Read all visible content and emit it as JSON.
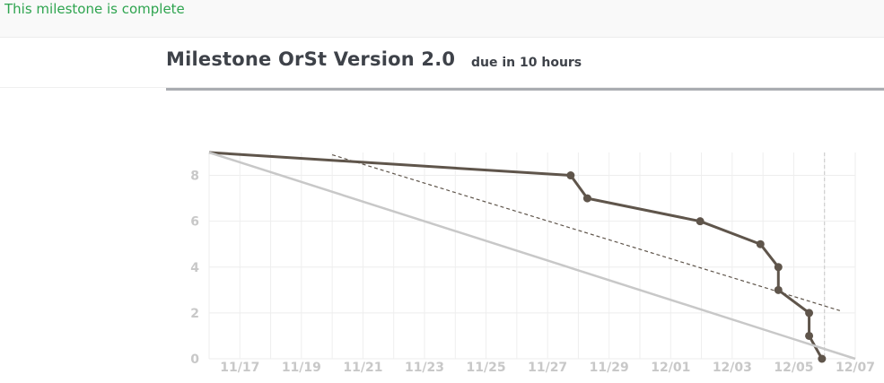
{
  "banner": {
    "text": "This milestone is complete"
  },
  "milestone": {
    "title": "Milestone OrSt Version 2.0",
    "due": "due in 10 hours"
  },
  "colors": {
    "banner_text": "#2ea44f",
    "actual_line": "#5f554b",
    "ideal_line": "#c8c8c8",
    "grid": "#eeeeee",
    "tick_text": "#c8c8c8"
  },
  "chart_data": {
    "type": "line",
    "title": "",
    "xlabel": "",
    "ylabel": "",
    "x_tick_labels": [
      "11/17",
      "11/19",
      "11/21",
      "11/23",
      "11/25",
      "11/27",
      "11/29",
      "12/01",
      "12/03",
      "12/05",
      "12/07"
    ],
    "y_ticks": [
      0,
      2,
      4,
      6,
      8
    ],
    "xlim": [
      "11/16",
      "12/07"
    ],
    "ylim": [
      0,
      9
    ],
    "grid": true,
    "series": [
      {
        "role": "actual",
        "style": "solid-with-markers",
        "points": [
          {
            "x": "11/16",
            "y": 9,
            "marker": false
          },
          {
            "x": "11/27 18:00",
            "y": 8
          },
          {
            "x": "11/28 07:00",
            "y": 7
          },
          {
            "x": "12/01 23:00",
            "y": 6
          },
          {
            "x": "12/03 22:00",
            "y": 5
          },
          {
            "x": "12/04 12:00",
            "y": 4
          },
          {
            "x": "12/04 12:00",
            "y": 3
          },
          {
            "x": "12/05 12:00",
            "y": 2
          },
          {
            "x": "12/05 12:00",
            "y": 1
          },
          {
            "x": "12/05 22:00",
            "y": 0
          }
        ]
      },
      {
        "role": "ideal",
        "style": "solid-light",
        "points": [
          {
            "x": "11/16",
            "y": 9
          },
          {
            "x": "12/07",
            "y": 0
          }
        ]
      },
      {
        "role": "trend",
        "style": "dashed",
        "points": [
          {
            "x": "11/20",
            "y": 8.9
          },
          {
            "x": "12/06 12:00",
            "y": 2.1
          }
        ]
      }
    ],
    "markers": [
      {
        "style": "vertical-dashed",
        "x": "12/06"
      }
    ]
  }
}
